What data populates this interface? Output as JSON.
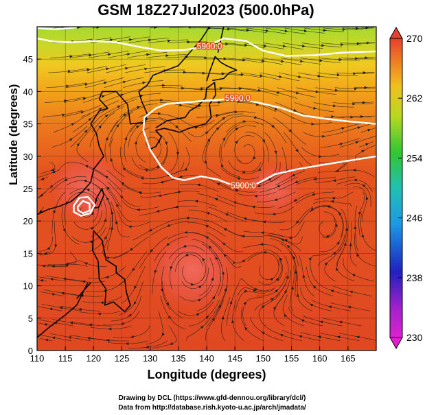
{
  "title": "GSM 18Z27Jul2023 (500.0hPa)",
  "xlabel": "Longitude (degrees)",
  "ylabel": "Latitude (degrees)",
  "credit_line1": "Drawing by DCL (https://www.gfd-dennou.org/library/dcl/)",
  "credit_line2": "Data from http://database.rish.kyoto-u.ac.jp/arch/jmadata/",
  "colors": {
    "contour": "#ffffff",
    "coast": "#000000",
    "streamline": "#1a1a1a"
  },
  "chart_data": {
    "type": "heatmap",
    "xlim": [
      110,
      170
    ],
    "ylim": [
      0,
      50
    ],
    "x_ticks": [
      110,
      115,
      120,
      125,
      130,
      135,
      140,
      145,
      150,
      155,
      160,
      165
    ],
    "y_ticks": [
      0,
      5,
      10,
      15,
      20,
      25,
      30,
      35,
      40,
      45
    ],
    "grid": true,
    "colorbar": {
      "min": 230,
      "max": 270,
      "ticks": [
        230,
        238,
        246,
        254,
        262,
        270
      ]
    },
    "contour_labels": [
      {
        "text": "5900.0",
        "lon": 140.5,
        "lat": 47.0
      },
      {
        "text": "5900.0",
        "lon": 145.5,
        "lat": 39.0
      },
      {
        "text": "5900.0",
        "lon": 146.5,
        "lat": 25.5
      }
    ],
    "contours": [
      {
        "value": "5900.0",
        "points": [
          [
            110,
            48.2
          ],
          [
            113,
            47.7
          ],
          [
            116,
            47.6
          ],
          [
            120,
            47.8
          ],
          [
            124,
            47.6
          ],
          [
            128,
            46.9
          ],
          [
            132,
            46.3
          ],
          [
            136,
            46.4
          ],
          [
            140,
            47.0
          ],
          [
            143,
            48.2
          ],
          [
            147,
            47.8
          ],
          [
            150,
            46.3
          ],
          [
            154,
            45.5
          ],
          [
            159,
            45.6
          ],
          [
            164,
            46.0
          ],
          [
            170,
            46.2
          ]
        ]
      },
      {
        "value": "5900.0",
        "points": [
          [
            110,
            49.8
          ],
          [
            113,
            49.6
          ],
          [
            117,
            49.9
          ]
        ]
      },
      {
        "value": "5900.0",
        "points": [
          [
            170,
            35.0
          ],
          [
            166,
            35.3
          ],
          [
            161,
            35.8
          ],
          [
            157,
            36.3
          ],
          [
            153,
            37.5
          ],
          [
            149,
            38.3
          ],
          [
            145,
            38.9
          ],
          [
            140,
            38.6
          ],
          [
            136,
            38.3
          ],
          [
            133,
            38.1
          ],
          [
            131,
            37.4
          ],
          [
            129,
            36.0
          ],
          [
            128.8,
            34.0
          ],
          [
            130,
            31.0
          ],
          [
            132,
            28.3
          ],
          [
            134,
            26.7
          ],
          [
            136,
            26.3
          ],
          [
            139,
            26.9
          ],
          [
            142,
            26.4
          ],
          [
            145,
            25.4
          ],
          [
            149,
            25.8
          ],
          [
            152,
            27.2
          ],
          [
            156,
            28.0
          ],
          [
            160,
            28.6
          ],
          [
            165,
            29.3
          ],
          [
            170,
            30.0
          ]
        ]
      },
      {
        "value": "5900.0",
        "points": [
          [
            116.5,
            22.4
          ],
          [
            117.5,
            23.6
          ],
          [
            119,
            23.7
          ],
          [
            120.2,
            22.5
          ],
          [
            119.4,
            21.2
          ],
          [
            117.8,
            20.8
          ],
          [
            116.5,
            21.4
          ],
          [
            116.5,
            22.4
          ]
        ]
      },
      {
        "value": "5900.0",
        "points": [
          [
            117.2,
            22.2
          ],
          [
            118.1,
            23.1
          ],
          [
            119.3,
            22.7
          ],
          [
            119.3,
            21.6
          ],
          [
            118.1,
            21.2
          ],
          [
            117.2,
            21.7
          ],
          [
            117.2,
            22.2
          ]
        ]
      }
    ],
    "heat_centers": [
      {
        "lon": 137.5,
        "lat": 12.5,
        "value": 268.5
      },
      {
        "lon": 119.0,
        "lat": 25.0,
        "value": 267.5
      },
      {
        "lon": 152.0,
        "lat": 25.0,
        "value": 265.5
      }
    ]
  }
}
